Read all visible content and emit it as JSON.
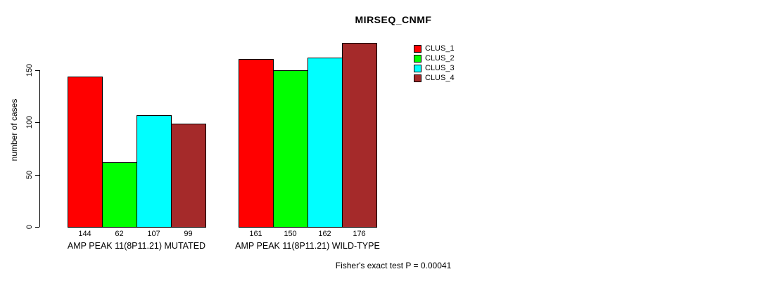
{
  "title": "MIRSEQ_CNMF",
  "footer": "Fisher's exact test P = 0.00041",
  "chart_data": {
    "type": "bar",
    "title": "MIRSEQ_CNMF",
    "xlabel": "",
    "ylabel": "number of cases",
    "ylim": [
      0,
      150
    ],
    "yticks": [
      0,
      50,
      100,
      150
    ],
    "grid": false,
    "legend_position": "inside-top-right",
    "categories": [
      "AMP PEAK 11(8P11.21) MUTATED",
      "AMP PEAK 11(8P11.21) WILD-TYPE"
    ],
    "series": [
      {
        "name": "CLUS_1",
        "color": "#ff0000",
        "values": [
          144,
          161
        ]
      },
      {
        "name": "CLUS_2",
        "color": "#00ff00",
        "values": [
          62,
          150
        ]
      },
      {
        "name": "CLUS_3",
        "color": "#00ffff",
        "values": [
          107,
          162
        ]
      },
      {
        "name": "CLUS_4",
        "color": "#a52a2a",
        "values": [
          99,
          176
        ]
      }
    ],
    "bar_labels": [
      [
        "144",
        "62",
        "107",
        "99"
      ],
      [
        "161",
        "150",
        "162",
        "176"
      ]
    ],
    "annotation": "Fisher's exact test P = 0.00041"
  }
}
